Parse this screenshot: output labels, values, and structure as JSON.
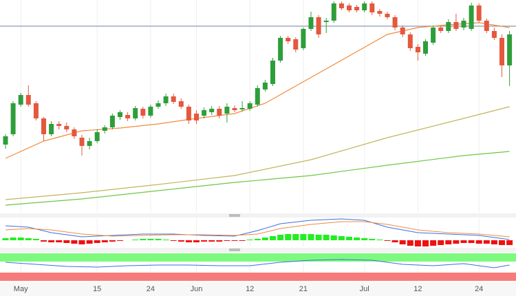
{
  "chart_data": {
    "type": "candlestick",
    "xticks": [
      {
        "value": 2,
        "label": "May"
      },
      {
        "value": 12,
        "label": "15"
      },
      {
        "value": 19,
        "label": "24"
      },
      {
        "value": 25,
        "label": "Jun"
      },
      {
        "value": 32,
        "label": "12"
      },
      {
        "value": 39,
        "label": "21"
      },
      {
        "value": 47,
        "label": "Jul"
      },
      {
        "value": 54,
        "label": "12"
      },
      {
        "value": 62,
        "label": "24"
      }
    ],
    "ylim": [
      0,
      310
    ],
    "up_color": "#2e9e3a",
    "down_color": "#e4583e",
    "open": [
      100,
      115,
      158,
      172,
      160,
      138,
      115,
      130,
      127,
      122,
      110,
      98,
      105,
      120,
      125,
      140,
      143,
      138,
      152,
      142,
      155,
      160,
      170,
      163,
      155,
      145,
      142,
      147,
      152,
      145,
      153,
      151,
      152,
      158,
      180,
      188,
      222,
      255,
      253,
      240,
      268,
      285,
      278,
      280,
      305,
      302,
      300,
      295,
      305,
      294,
      290,
      285,
      270,
      260,
      242,
      232,
      248,
      270,
      265,
      278,
      270,
      268,
      302,
      280,
      265,
      255,
      215
    ],
    "high": [
      115,
      163,
      175,
      186,
      163,
      140,
      134,
      134,
      132,
      125,
      114,
      110,
      122,
      128,
      145,
      150,
      147,
      156,
      155,
      158,
      164,
      174,
      174,
      167,
      158,
      150,
      154,
      156,
      156,
      160,
      157,
      163,
      163,
      186,
      194,
      226,
      258,
      258,
      256,
      270,
      293,
      288,
      284,
      308,
      308,
      305,
      303,
      308,
      308,
      297,
      293,
      288,
      273,
      263,
      246,
      253,
      273,
      273,
      282,
      290,
      284,
      306,
      305,
      283,
      270,
      260,
      265
    ],
    "low": [
      94,
      112,
      155,
      155,
      135,
      105,
      112,
      122,
      118,
      108,
      84,
      93,
      102,
      116,
      122,
      136,
      134,
      135,
      138,
      139,
      152,
      156,
      159,
      152,
      130,
      130,
      138,
      143,
      138,
      132,
      147,
      148,
      149,
      155,
      177,
      185,
      219,
      246,
      234,
      237,
      265,
      255,
      262,
      277,
      295,
      292,
      292,
      292,
      288,
      286,
      282,
      266,
      256,
      236,
      222,
      229,
      245,
      262,
      262,
      265,
      266,
      265,
      277,
      262,
      252,
      198,
      185
    ],
    "close": [
      112,
      160,
      172,
      158,
      138,
      115,
      130,
      127,
      122,
      112,
      98,
      105,
      118,
      125,
      142,
      147,
      138,
      153,
      142,
      155,
      160,
      170,
      162,
      155,
      135,
      135,
      150,
      152,
      142,
      155,
      150,
      153,
      160,
      182,
      190,
      222,
      255,
      250,
      238,
      268,
      285,
      260,
      280,
      305,
      298,
      295,
      295,
      305,
      292,
      290,
      285,
      270,
      260,
      240,
      234,
      250,
      270,
      265,
      278,
      268,
      280,
      302,
      280,
      265,
      255,
      215,
      260
    ],
    "hline": {
      "value": 272,
      "color": "#8a9bb0"
    },
    "moving_averages": [
      {
        "color": "#f08a3c",
        "x": [
          0,
          5,
          10,
          15,
          20,
          25,
          30,
          34,
          38,
          42,
          46,
          50,
          54,
          58,
          62,
          66
        ],
        "values": [
          80,
          105,
          120,
          124,
          130,
          138,
          145,
          160,
          185,
          210,
          235,
          260,
          270,
          274,
          277,
          270
        ]
      },
      {
        "color": "#c2b45a",
        "x": [
          0,
          10,
          20,
          30,
          40,
          50,
          60,
          66
        ],
        "values": [
          20,
          30,
          42,
          55,
          78,
          110,
          138,
          155
        ]
      },
      {
        "color": "#6cc644",
        "x": [
          0,
          10,
          20,
          30,
          40,
          50,
          60,
          66
        ],
        "values": [
          12,
          21,
          33,
          45,
          55,
          70,
          84,
          90
        ]
      }
    ],
    "macd": {
      "ylim": [
        -9,
        31
      ],
      "lines": [
        {
          "color": "#3b6fe0",
          "x": [
            0,
            3,
            6,
            10,
            14,
            18,
            22,
            26,
            30,
            33,
            36,
            40,
            44,
            47,
            50,
            54,
            58,
            62,
            66
          ],
          "values": [
            21,
            19,
            11,
            5,
            7,
            9,
            9,
            7,
            6,
            14,
            24,
            29,
            31,
            29,
            19,
            11,
            9,
            7,
            1
          ]
        },
        {
          "color": "#f08a3c",
          "x": [
            0,
            3,
            6,
            10,
            14,
            18,
            22,
            26,
            30,
            33,
            36,
            40,
            44,
            47,
            50,
            54,
            58,
            62,
            66
          ],
          "values": [
            15,
            17,
            15,
            9,
            6,
            7,
            8,
            8,
            7,
            9,
            17,
            23,
            27,
            27,
            23,
            15,
            11,
            9,
            5
          ]
        }
      ],
      "histogram": [
        3,
        4,
        4,
        3,
        2,
        -2,
        -3,
        -3,
        -4,
        -5,
        -6,
        -5,
        -4,
        -3,
        -2,
        -1,
        0,
        1,
        2,
        2,
        2,
        1,
        -1,
        -2,
        -3,
        -3,
        -2,
        -2,
        -2,
        -1,
        -1,
        -1,
        1,
        2,
        4,
        6,
        8,
        9,
        9,
        9,
        9,
        8,
        8,
        7,
        6,
        5,
        4,
        3,
        2,
        1,
        -1,
        -3,
        -6,
        -8,
        -9,
        -9,
        -8,
        -7,
        -6,
        -5,
        -4,
        -4,
        -5,
        -5,
        -6,
        -7,
        -7
      ],
      "up_color": "#22ee22",
      "down_color": "#ee1111"
    },
    "rsi": {
      "ylim": [
        0,
        100
      ],
      "overbought": [
        70,
        100
      ],
      "oversold": [
        0,
        30
      ],
      "overbought_color": "#7dfa7d",
      "oversold_color": "#f77b7b",
      "color": "#3b6fe0",
      "x": [
        0,
        4,
        8,
        12,
        16,
        20,
        24,
        28,
        32,
        36,
        40,
        44,
        48,
        52,
        56,
        60,
        64,
        66
      ],
      "values": [
        67.5,
        60,
        52.5,
        50,
        55,
        57.5,
        57.5,
        55,
        55,
        67.5,
        75,
        77.5,
        75,
        60,
        55,
        62.5,
        47.5,
        57.5
      ]
    }
  }
}
